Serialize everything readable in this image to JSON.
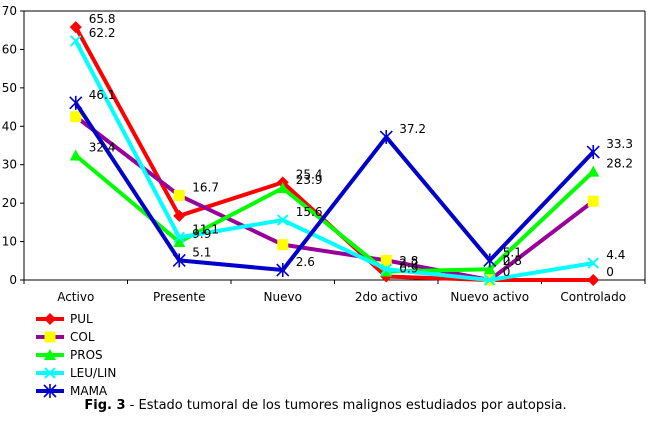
{
  "chart_data": {
    "type": "line",
    "categories": [
      "Activo",
      "Presente",
      "Nuevo",
      "2do activo",
      "Nuevo activo",
      "Controlado"
    ],
    "ylim": [
      0,
      70
    ],
    "yticks": [
      "0",
      "10",
      "20",
      "30",
      "40",
      "50",
      "60",
      "70"
    ],
    "grid": false,
    "legend_position": "bottom-left",
    "series": [
      {
        "name": "PUL",
        "color": "#ff0000",
        "marker": "diamond",
        "values": [
          65.8,
          16.7,
          25.4,
          0.9,
          0,
          0
        ]
      },
      {
        "name": "COL",
        "color": "#ffff00",
        "line_color": "#990099",
        "marker": "square",
        "values": [
          42.5,
          22,
          9.2,
          5.1,
          0,
          20.5
        ]
      },
      {
        "name": "PROS",
        "color": "#00ff00",
        "marker": "triangle",
        "values": [
          32.4,
          9.9,
          23.9,
          2.2,
          2.8,
          28.2
        ]
      },
      {
        "name": "LEU/LIN",
        "color": "#00ffff",
        "marker": "x",
        "values": [
          62.2,
          11.1,
          15.6,
          2.8,
          0,
          4.4
        ]
      },
      {
        "name": "MAMA",
        "color": "#0000cc",
        "marker": "asterisk",
        "values": [
          46.1,
          5.1,
          2.6,
          37.2,
          5.1,
          33.3
        ]
      }
    ],
    "data_labels": [
      {
        "text": "65.8",
        "cat": 0,
        "y": 65.8
      },
      {
        "text": "62.2",
        "cat": 0,
        "y": 62.2
      },
      {
        "text": "46.1",
        "cat": 0,
        "y": 46.1
      },
      {
        "text": "32.4",
        "cat": 0,
        "y": 32.4
      },
      {
        "text": "16.7",
        "cat": 1,
        "y": 22
      },
      {
        "text": "11.1",
        "cat": 1,
        "y": 11.1
      },
      {
        "text": "9.9",
        "cat": 1,
        "y": 9.9
      },
      {
        "text": "5.1",
        "cat": 1,
        "y": 5.1
      },
      {
        "text": "25.4",
        "cat": 2,
        "y": 25.4
      },
      {
        "text": "23.9",
        "cat": 2,
        "y": 23.9
      },
      {
        "text": "15.6",
        "cat": 2,
        "y": 15.6
      },
      {
        "text": "2.6",
        "cat": 2,
        "y": 2.6
      },
      {
        "text": "37.2",
        "cat": 3,
        "y": 37.2
      },
      {
        "text": "2.2",
        "cat": 3,
        "y": 2.2
      },
      {
        "text": "0.9",
        "cat": 3,
        "y": 0.9
      },
      {
        "text": "2.8",
        "cat": 3,
        "y": 2.8
      },
      {
        "text": "5.1",
        "cat": 4,
        "y": 5.1
      },
      {
        "text": "0",
        "cat": 4,
        "y": 2.8
      },
      {
        "text": "2.8",
        "cat": 4,
        "y": 2.8
      },
      {
        "text": "0",
        "cat": 4,
        "y": 0
      },
      {
        "text": "33.3",
        "cat": 5,
        "y": 33.3
      },
      {
        "text": "28.2",
        "cat": 5,
        "y": 28.2
      },
      {
        "text": "4.4",
        "cat": 5,
        "y": 4.4
      },
      {
        "text": "0",
        "cat": 5,
        "y": 0
      }
    ]
  },
  "caption": {
    "prefix": "Fig. 3",
    "text": " - Estado tumoral de los tumores malignos estudiados por autopsia."
  }
}
